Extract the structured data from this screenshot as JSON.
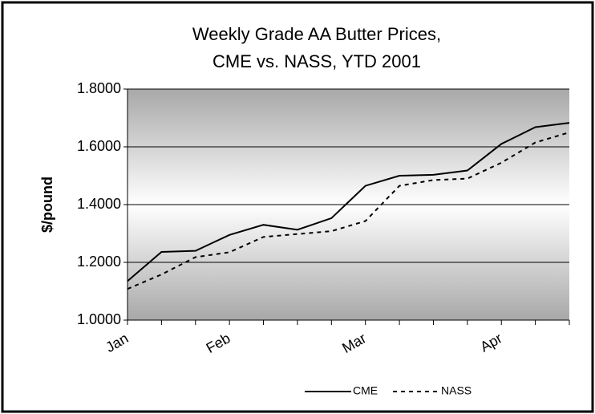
{
  "chart_data": {
    "type": "line",
    "title": [
      "Weekly Grade AA Butter Prices,",
      "CME vs. NASS, YTD 2001"
    ],
    "y_label": "$/pound",
    "categories": [
      "Jan",
      null,
      null,
      "Feb",
      null,
      null,
      null,
      "Mar",
      null,
      null,
      null,
      "Apr",
      null,
      null
    ],
    "series": [
      {
        "name": "CME",
        "color": "#000000",
        "dash": false,
        "values": [
          1.135,
          1.236,
          1.24,
          1.295,
          1.33,
          1.313,
          1.353,
          1.465,
          1.5,
          1.503,
          1.518,
          1.61,
          1.668,
          1.683
        ]
      },
      {
        "name": "NASS",
        "color": "#000000",
        "dash": true,
        "values": [
          1.108,
          1.158,
          1.218,
          1.235,
          1.288,
          1.298,
          1.308,
          1.343,
          1.465,
          1.485,
          1.49,
          1.545,
          1.615,
          1.65
        ]
      }
    ],
    "ylim": [
      1.0,
      1.8
    ],
    "yticks": [
      {
        "value": 1.0,
        "label": "1.0000"
      },
      {
        "value": 1.2,
        "label": "1.2000"
      },
      {
        "value": 1.4,
        "label": "1.4000"
      },
      {
        "value": 1.6,
        "label": "1.6000"
      },
      {
        "value": 1.8,
        "label": "1.8000"
      }
    ],
    "grid": true,
    "legend": "bottom"
  }
}
